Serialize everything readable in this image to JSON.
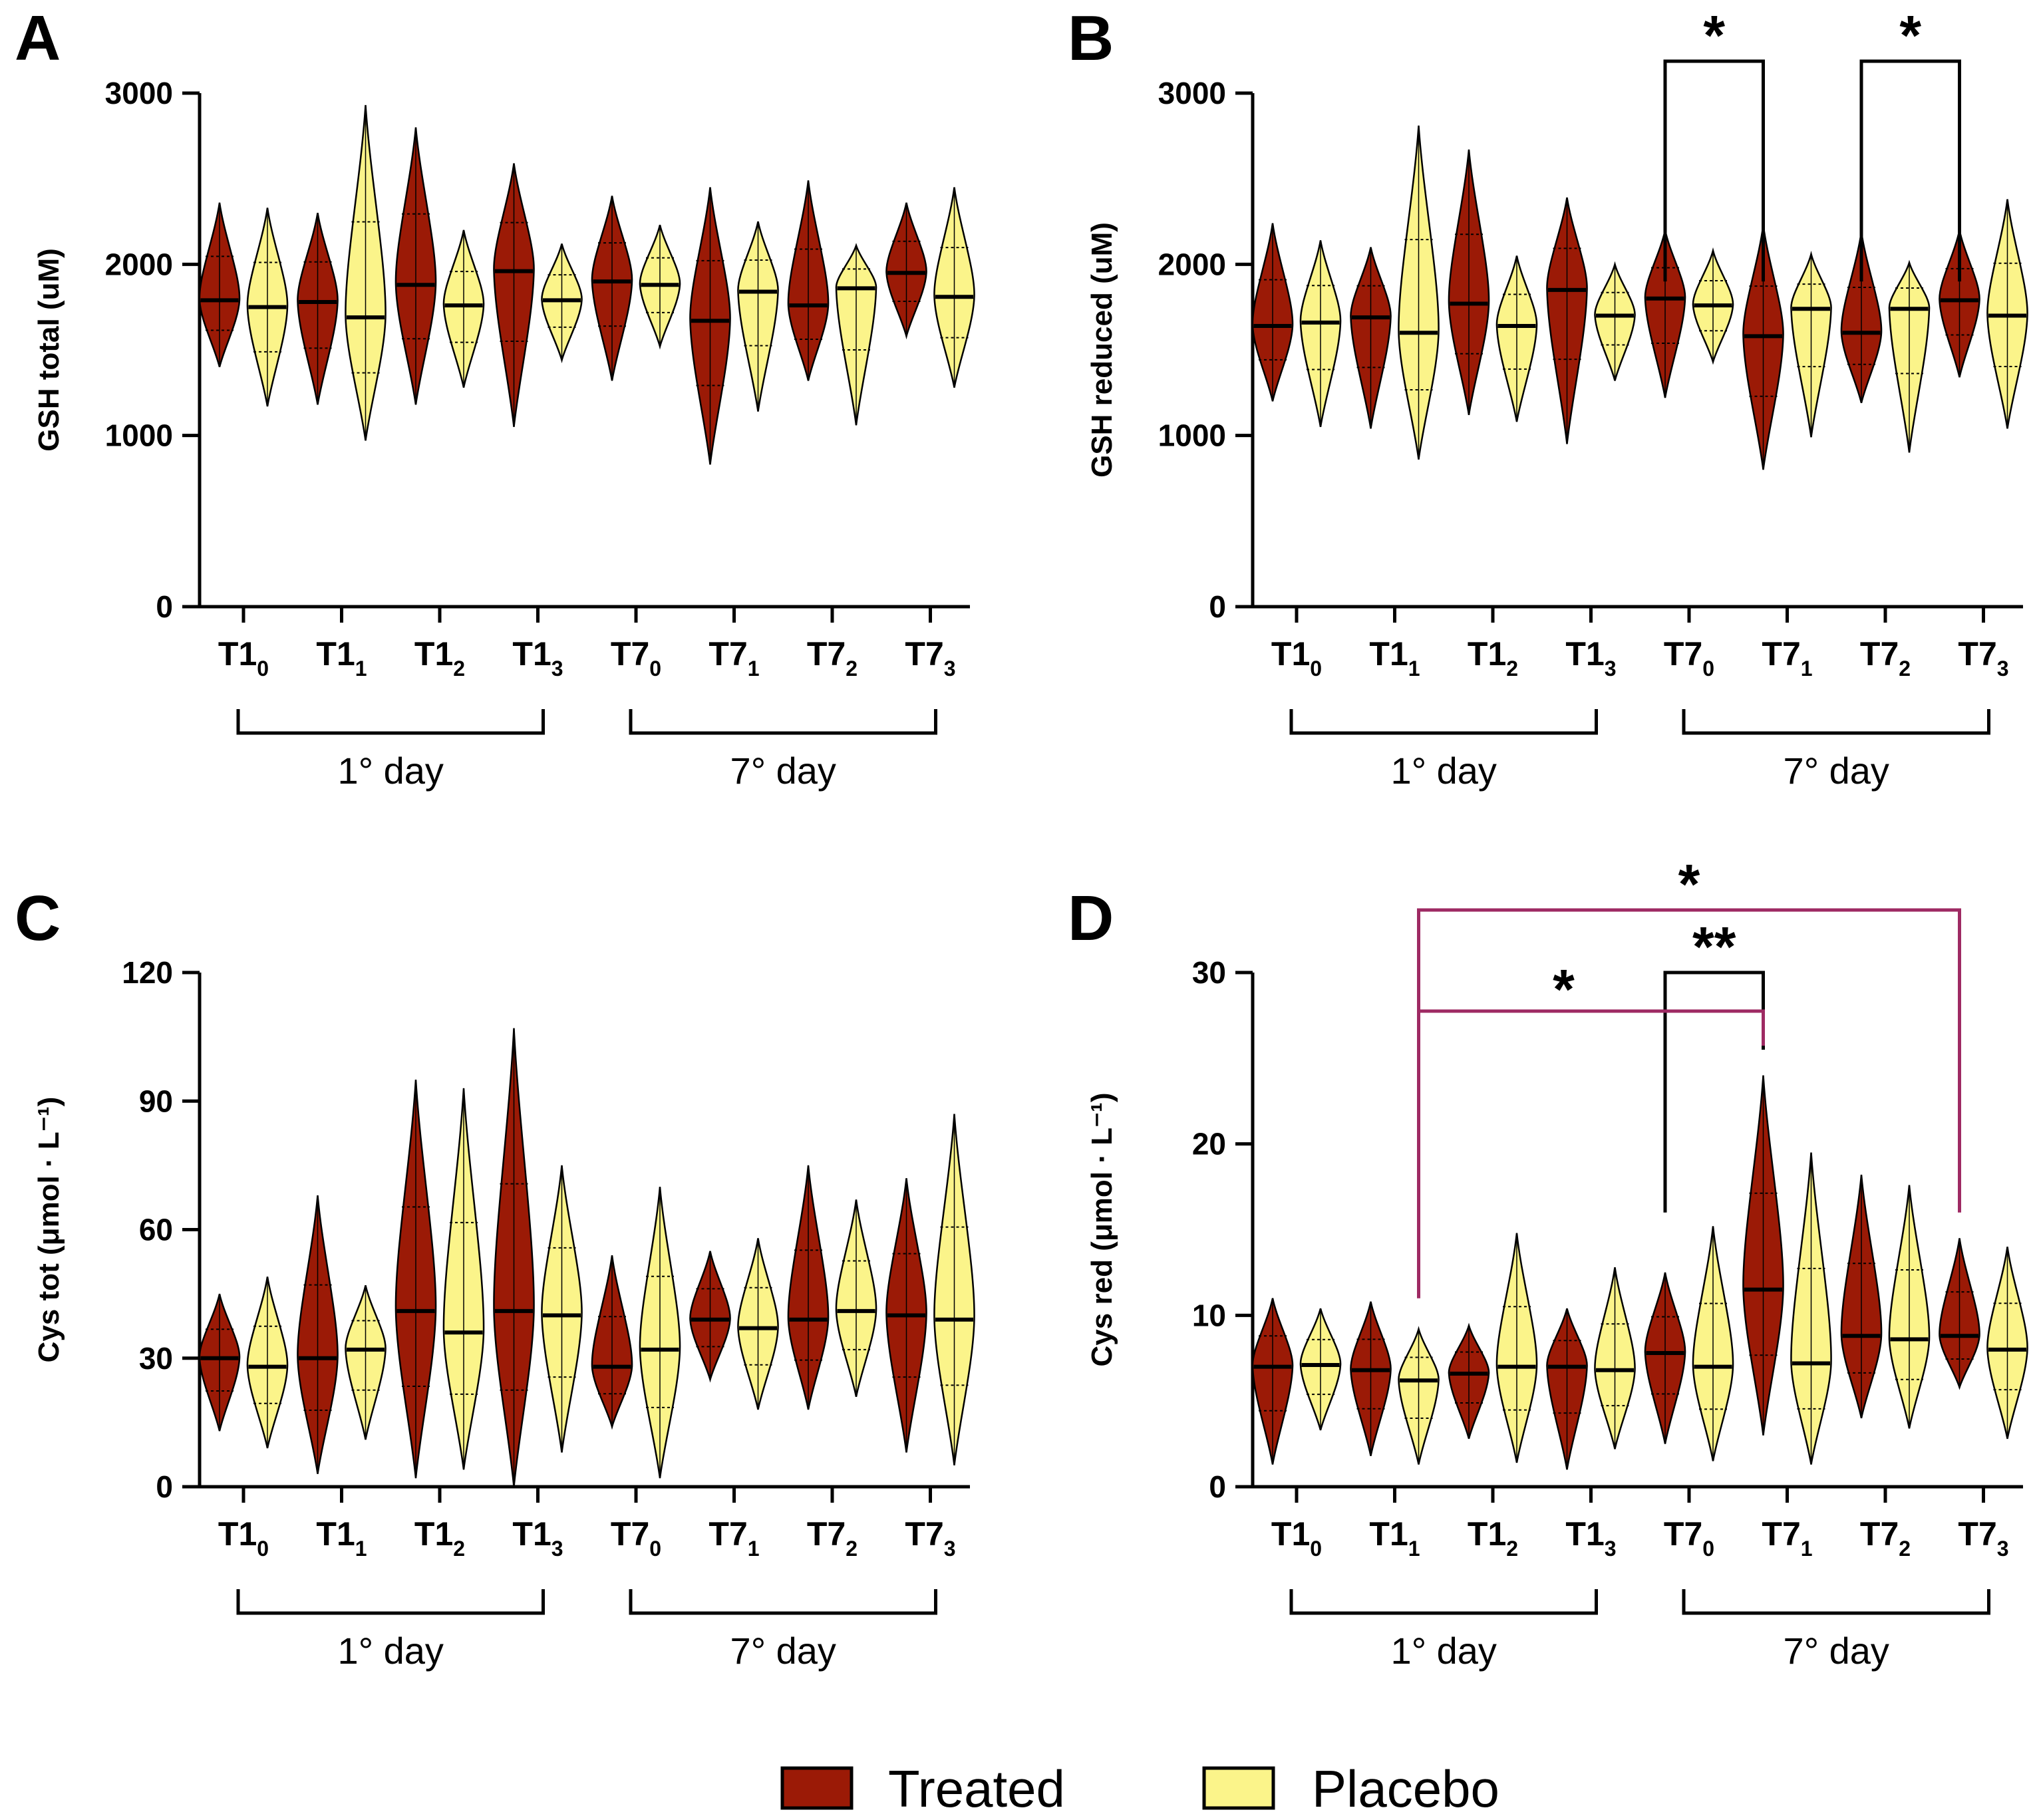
{
  "figure": {
    "legend": [
      {
        "label": "Treated",
        "color": "#9b1a06"
      },
      {
        "label": "Placebo",
        "color": "#fbf48a"
      }
    ]
  },
  "chart_data": [
    {
      "panel": "A",
      "type": "violin",
      "ylabel": "GSH total (uM)",
      "ylim": [
        0,
        3000
      ],
      "yticks": [
        0,
        1000,
        2000,
        3000
      ],
      "categories": [
        "T1_0",
        "T1_1",
        "T1_2",
        "T1_3",
        "T7_0",
        "T7_1",
        "T7_2",
        "T7_3"
      ],
      "tick_labels": [
        {
          "main": "T1",
          "sub": "0"
        },
        {
          "main": "T1",
          "sub": "1"
        },
        {
          "main": "T1",
          "sub": "2"
        },
        {
          "main": "T1",
          "sub": "3"
        },
        {
          "main": "T7",
          "sub": "0"
        },
        {
          "main": "T7",
          "sub": "1"
        },
        {
          "main": "T7",
          "sub": "2"
        },
        {
          "main": "T7",
          "sub": "3"
        }
      ],
      "groups": [
        {
          "label": "1° day",
          "range": [
            0,
            3
          ]
        },
        {
          "label": "7° day",
          "range": [
            4,
            7
          ]
        }
      ],
      "series": [
        {
          "name": "Treated",
          "color": "#9b1a06",
          "min": [
            1400,
            1180,
            1180,
            1050,
            1320,
            830,
            1320,
            1580
          ],
          "median": [
            1790,
            1780,
            1880,
            1960,
            1900,
            1670,
            1760,
            1950
          ],
          "max": [
            2360,
            2300,
            2800,
            2590,
            2400,
            2450,
            2490,
            2360
          ]
        },
        {
          "name": "Placebo",
          "color": "#fbf48a",
          "min": [
            1170,
            970,
            1280,
            1440,
            1520,
            1140,
            1060,
            1280
          ],
          "median": [
            1750,
            1690,
            1760,
            1790,
            1880,
            1840,
            1860,
            1810
          ],
          "max": [
            2330,
            2930,
            2200,
            2120,
            2230,
            2250,
            2110,
            2450
          ]
        }
      ],
      "brackets": []
    },
    {
      "panel": "B",
      "type": "violin",
      "ylabel": "GSH reduced (uM)",
      "ylim": [
        0,
        3000
      ],
      "yticks": [
        0,
        1000,
        2000,
        3000
      ],
      "categories": [
        "T1_0",
        "T1_1",
        "T1_2",
        "T1_3",
        "T7_0",
        "T7_1",
        "T7_2",
        "T7_3"
      ],
      "tick_labels": [
        {
          "main": "T1",
          "sub": "0"
        },
        {
          "main": "T1",
          "sub": "1"
        },
        {
          "main": "T1",
          "sub": "2"
        },
        {
          "main": "T1",
          "sub": "3"
        },
        {
          "main": "T7",
          "sub": "0"
        },
        {
          "main": "T7",
          "sub": "1"
        },
        {
          "main": "T7",
          "sub": "2"
        },
        {
          "main": "T7",
          "sub": "3"
        }
      ],
      "groups": [
        {
          "label": "1° day",
          "range": [
            0,
            3
          ]
        },
        {
          "label": "7° day",
          "range": [
            4,
            7
          ]
        }
      ],
      "series": [
        {
          "name": "Treated",
          "color": "#9b1a06",
          "min": [
            1200,
            1040,
            1120,
            950,
            1220,
            800,
            1190,
            1340
          ],
          "median": [
            1640,
            1690,
            1770,
            1850,
            1800,
            1580,
            1600,
            1790
          ],
          "max": [
            2240,
            2100,
            2670,
            2390,
            2200,
            2230,
            2190,
            2200
          ]
        },
        {
          "name": "Placebo",
          "color": "#fbf48a",
          "min": [
            1050,
            860,
            1080,
            1320,
            1430,
            990,
            900,
            1040
          ],
          "median": [
            1660,
            1600,
            1640,
            1700,
            1760,
            1740,
            1740,
            1700
          ],
          "max": [
            2140,
            2810,
            2050,
            2000,
            2080,
            2060,
            2010,
            2380
          ]
        }
      ],
      "brackets": [
        {
          "from": "T7_0",
          "to": "T7_1",
          "label": "*",
          "color": "#000000"
        },
        {
          "from": "T7_2",
          "to": "T7_3",
          "label": "*",
          "color": "#000000"
        }
      ]
    },
    {
      "panel": "C",
      "type": "violin",
      "ylabel": "Cys tot (μmol · L⁻¹)",
      "ylim": [
        0,
        120
      ],
      "yticks": [
        0,
        30,
        60,
        90,
        120
      ],
      "categories": [
        "T1_0",
        "T1_1",
        "T1_2",
        "T1_3",
        "T7_0",
        "T7_1",
        "T7_2",
        "T7_3"
      ],
      "tick_labels": [
        {
          "main": "T1",
          "sub": "0"
        },
        {
          "main": "T1",
          "sub": "1"
        },
        {
          "main": "T1",
          "sub": "2"
        },
        {
          "main": "T1",
          "sub": "3"
        },
        {
          "main": "T7",
          "sub": "0"
        },
        {
          "main": "T7",
          "sub": "1"
        },
        {
          "main": "T7",
          "sub": "2"
        },
        {
          "main": "T7",
          "sub": "3"
        }
      ],
      "groups": [
        {
          "label": "1° day",
          "range": [
            0,
            3
          ]
        },
        {
          "label": "7° day",
          "range": [
            4,
            7
          ]
        }
      ],
      "series": [
        {
          "name": "Treated",
          "color": "#9b1a06",
          "min": [
            13,
            3,
            2,
            0,
            14,
            25,
            18,
            8
          ],
          "median": [
            30,
            30,
            41,
            41,
            28,
            39,
            39,
            40
          ],
          "max": [
            45,
            68,
            95,
            107,
            54,
            55,
            75,
            72
          ]
        },
        {
          "name": "Placebo",
          "color": "#fbf48a",
          "min": [
            9,
            11,
            4,
            8,
            2,
            18,
            21,
            5
          ],
          "median": [
            28,
            32,
            36,
            40,
            32,
            37,
            41,
            39
          ],
          "max": [
            49,
            47,
            93,
            75,
            70,
            58,
            67,
            87
          ]
        }
      ],
      "brackets": []
    },
    {
      "panel": "D",
      "type": "violin",
      "ylabel": "Cys red (μmol · L⁻¹)",
      "ylim": [
        0,
        30
      ],
      "yticks": [
        0,
        10,
        20,
        30
      ],
      "categories": [
        "T1_0",
        "T1_1",
        "T1_2",
        "T1_3",
        "T7_0",
        "T7_1",
        "T7_2",
        "T7_3"
      ],
      "tick_labels": [
        {
          "main": "T1",
          "sub": "0"
        },
        {
          "main": "T1",
          "sub": "1"
        },
        {
          "main": "T1",
          "sub": "2"
        },
        {
          "main": "T1",
          "sub": "3"
        },
        {
          "main": "T7",
          "sub": "0"
        },
        {
          "main": "T7",
          "sub": "1"
        },
        {
          "main": "T7",
          "sub": "2"
        },
        {
          "main": "T7",
          "sub": "3"
        }
      ],
      "groups": [
        {
          "label": "1° day",
          "range": [
            0,
            3
          ]
        },
        {
          "label": "7° day",
          "range": [
            4,
            7
          ]
        }
      ],
      "series": [
        {
          "name": "Treated",
          "color": "#9b1a06",
          "min": [
            1.3,
            1.8,
            2.8,
            1.0,
            2.5,
            3.0,
            4.0,
            5.8
          ],
          "median": [
            7.0,
            6.8,
            6.6,
            7.0,
            7.8,
            11.5,
            8.8,
            8.8
          ],
          "max": [
            11.0,
            10.8,
            9.4,
            10.4,
            12.5,
            24.0,
            18.2,
            14.5
          ]
        },
        {
          "name": "Placebo",
          "color": "#fbf48a",
          "min": [
            3.3,
            1.3,
            1.4,
            2.2,
            1.5,
            1.3,
            3.4,
            2.8
          ],
          "median": [
            7.1,
            6.2,
            7.0,
            6.8,
            7.0,
            7.2,
            8.6,
            8.0
          ],
          "max": [
            10.4,
            9.2,
            14.8,
            12.8,
            15.2,
            19.5,
            17.6,
            14.0
          ]
        }
      ],
      "brackets": [
        {
          "from": "T7_0",
          "to": "T7_1",
          "label": "**",
          "color": "#000000"
        },
        {
          "from": "T1_1",
          "to": "T7_1",
          "label": "*",
          "color": "#9e2a63"
        },
        {
          "from": "T1_1",
          "to": "T7_3",
          "label": "*",
          "color": "#9e2a63"
        }
      ]
    }
  ]
}
